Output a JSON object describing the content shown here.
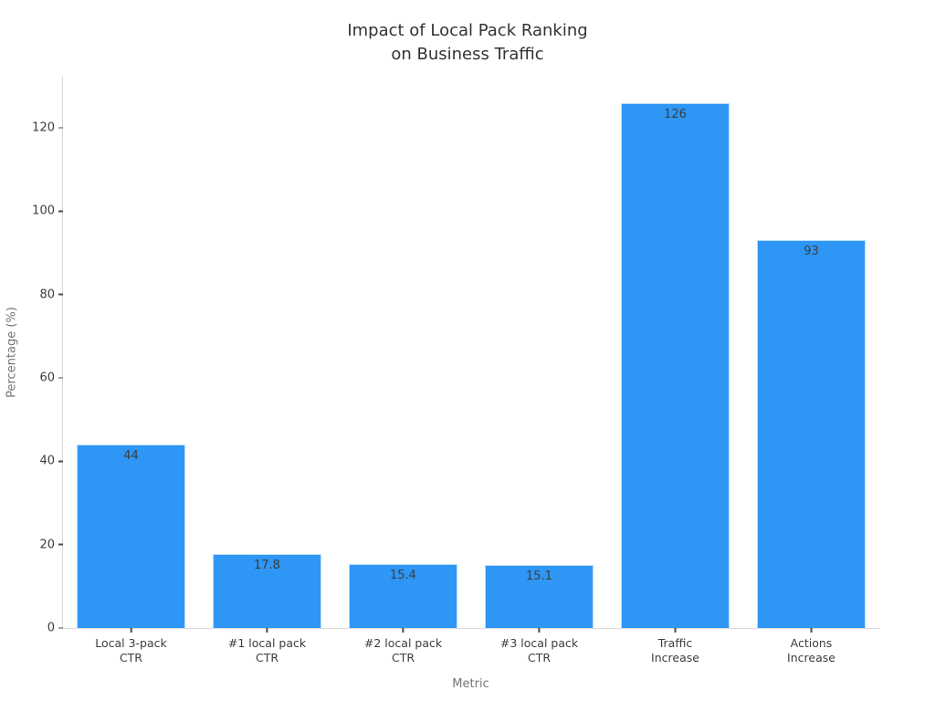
{
  "chart_data": {
    "type": "bar",
    "title": "Impact of Local Pack Ranking\non Business Traffic",
    "xlabel": "Metric",
    "ylabel": "Percentage (%)",
    "categories": [
      "Local 3-pack\nCTR",
      "#1 local pack\nCTR",
      "#2 local pack\nCTR",
      "#3 local pack\nCTR",
      "Traffic\nIncrease",
      "Actions\nIncrease"
    ],
    "values": [
      44,
      17.8,
      15.4,
      15.1,
      126,
      93
    ],
    "value_labels": [
      "44",
      "17.8",
      "15.4",
      "15.1",
      "126",
      "93"
    ],
    "yticks": [
      0,
      20,
      40,
      60,
      80,
      100,
      120
    ],
    "ylim": [
      0,
      132.3
    ],
    "bar_width_fraction": 0.8,
    "grid": false,
    "legend": null,
    "bar_color": "#2E96F5",
    "bar_edge_color": "#BEDDF8",
    "spine_color": "#d9d9d9",
    "tick_color": "#4a4a4a",
    "tick_label_color": "#3d3d3d",
    "axis_label_color": "#757575",
    "title_color": "#333333",
    "background_color": "#ffffff"
  }
}
